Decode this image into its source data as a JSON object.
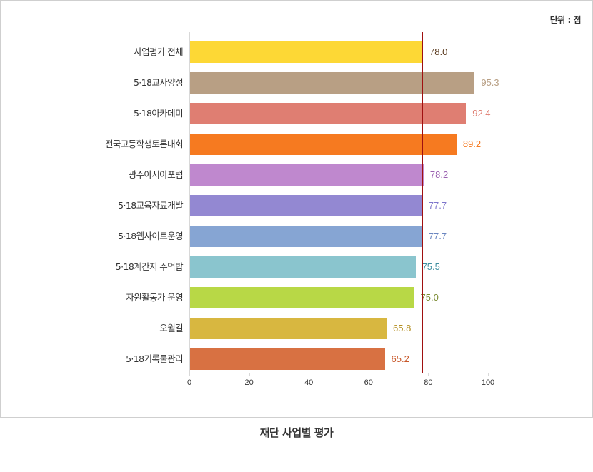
{
  "unit_label": "단위 : 점",
  "caption": "재단 사업별 평가",
  "chart_data": {
    "type": "bar",
    "orientation": "horizontal",
    "title": "재단 사업별 평가",
    "unit": "단위 : 점",
    "xlabel": "",
    "ylabel": "",
    "xlim": [
      0,
      100
    ],
    "x_ticks": [
      "0",
      "20",
      "40",
      "60",
      "80",
      "100"
    ],
    "grid": false,
    "reference_line": {
      "value": 78.0,
      "color": "#a01010",
      "label": "사업평가 전체"
    },
    "categories": [
      "사업평가 전체",
      "5·18교사양성",
      "5·18아카데미",
      "전국고등학생토론대회",
      "광주아시아포럼",
      "5·18교육자료개발",
      "5·18웹사이트운영",
      "5·18계간지 주먹밥",
      "자원활동가 운영",
      "오월길",
      "5·18기록물관리"
    ],
    "values": [
      78.0,
      95.3,
      92.4,
      89.2,
      78.2,
      77.7,
      77.7,
      75.5,
      75.0,
      65.8,
      65.2
    ],
    "value_labels": [
      "78.0",
      "95.3",
      "92.4",
      "89.2",
      "78.2",
      "77.7",
      "77.7",
      "75.5",
      "75.0",
      "65.8",
      "65.2"
    ],
    "bar_colors": [
      "#fdd835",
      "#b89f84",
      "#df7e72",
      "#f67a20",
      "#bf88ce",
      "#9388d2",
      "#86a5d3",
      "#8ac5ce",
      "#b8d846",
      "#d8b740",
      "#d87142"
    ],
    "label_colors": [
      "#5a3a1e",
      "#b89f84",
      "#df7e72",
      "#f67a20",
      "#9a60b0",
      "#7f77cc",
      "#6b86c0",
      "#3f8fa0",
      "#7a8a30",
      "#b38e20",
      "#c8582a"
    ]
  }
}
